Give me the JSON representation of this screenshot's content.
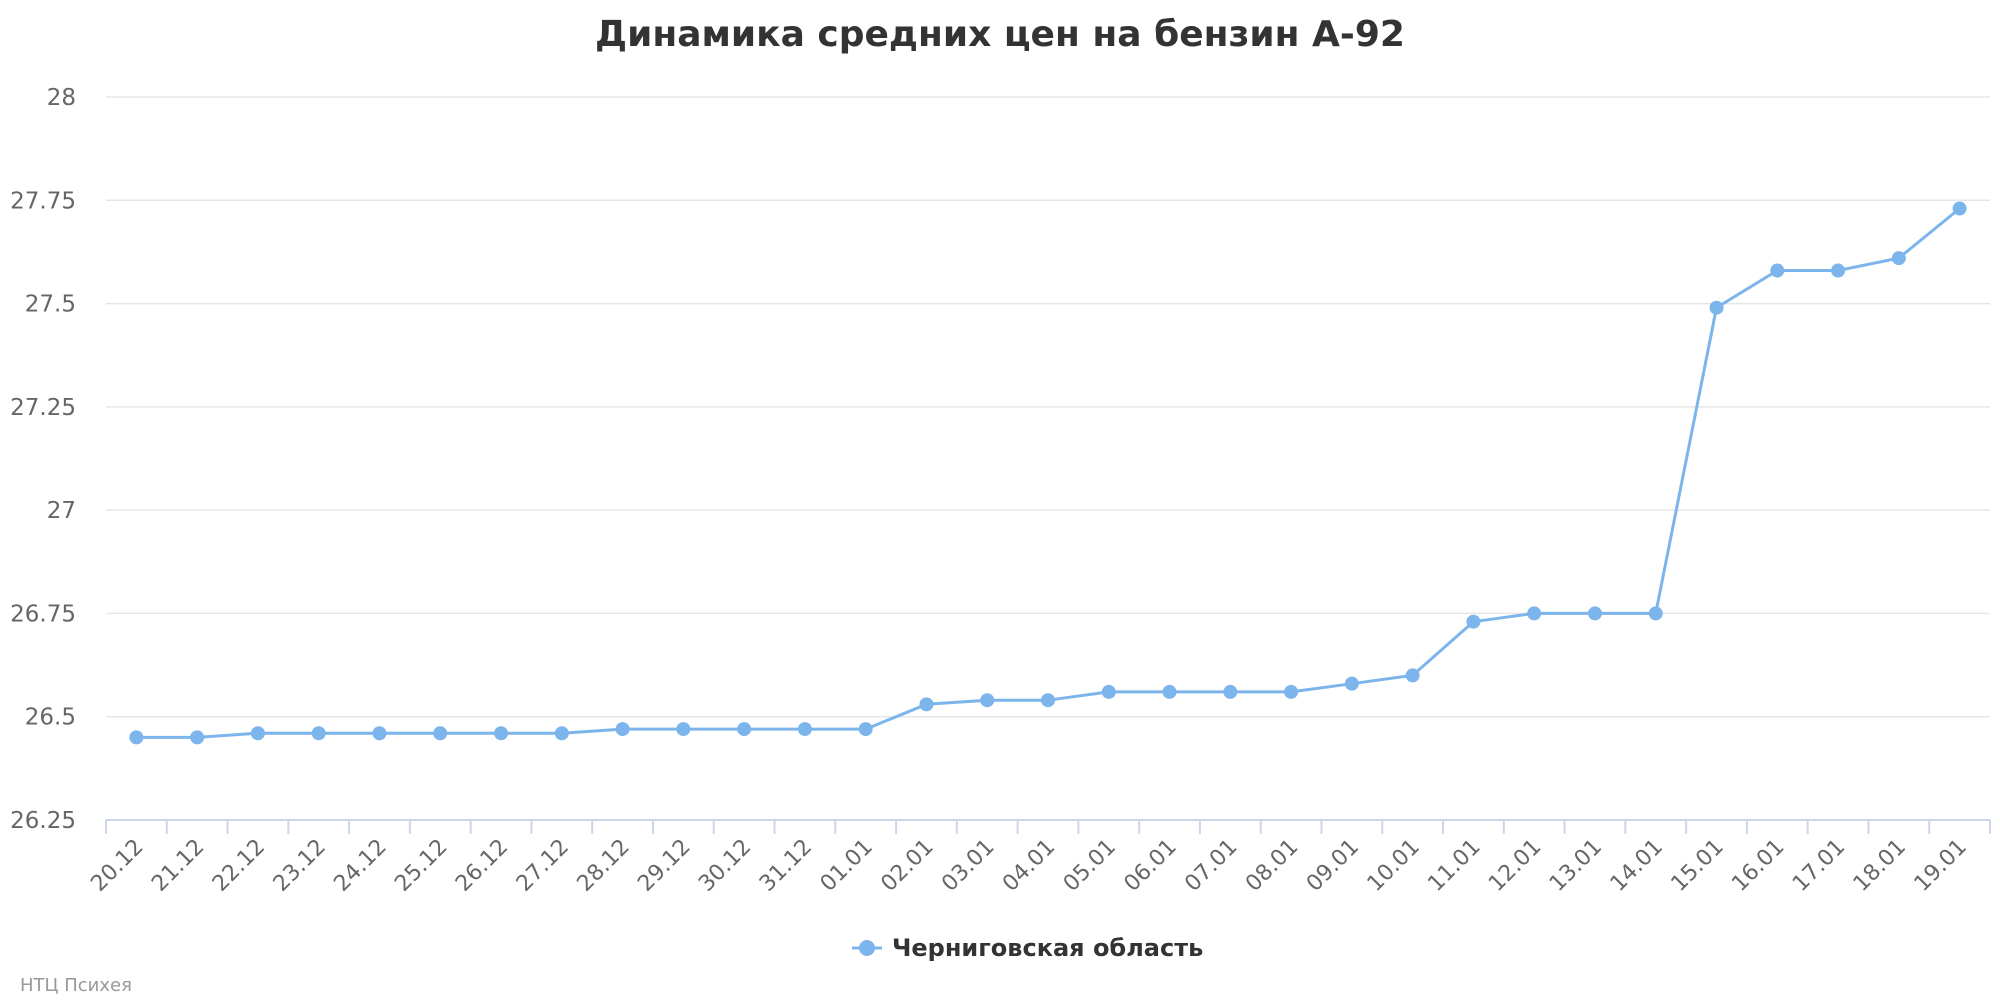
{
  "chart_data": {
    "type": "line",
    "title": "Динамика средних цен на бензин А-92",
    "xlabel": "",
    "ylabel": "",
    "categories": [
      "20.12",
      "21.12",
      "22.12",
      "23.12",
      "24.12",
      "25.12",
      "26.12",
      "27.12",
      "28.12",
      "29.12",
      "30.12",
      "31.12",
      "01.01",
      "02.01",
      "03.01",
      "04.01",
      "05.01",
      "06.01",
      "07.01",
      "08.01",
      "09.01",
      "10.01",
      "11.01",
      "12.01",
      "13.01",
      "14.01",
      "15.01",
      "16.01",
      "17.01",
      "18.01",
      "19.01"
    ],
    "series": [
      {
        "name": "Черниговская область",
        "color": "#7cb5ec",
        "values": [
          26.45,
          26.45,
          26.46,
          26.46,
          26.46,
          26.46,
          26.46,
          26.46,
          26.47,
          26.47,
          26.47,
          26.47,
          26.47,
          26.53,
          26.54,
          26.54,
          26.56,
          26.56,
          26.56,
          26.56,
          26.58,
          26.6,
          26.73,
          26.75,
          26.75,
          26.75,
          27.49,
          27.58,
          27.58,
          27.61,
          27.73
        ]
      }
    ],
    "ylim": [
      26.25,
      28
    ],
    "yticks": [
      "26.25",
      "26.5",
      "26.75",
      "27",
      "27.25",
      "27.5",
      "27.75",
      "28"
    ],
    "grid": true,
    "legend_position": "bottom-center"
  },
  "credit": "НТЦ Психея"
}
